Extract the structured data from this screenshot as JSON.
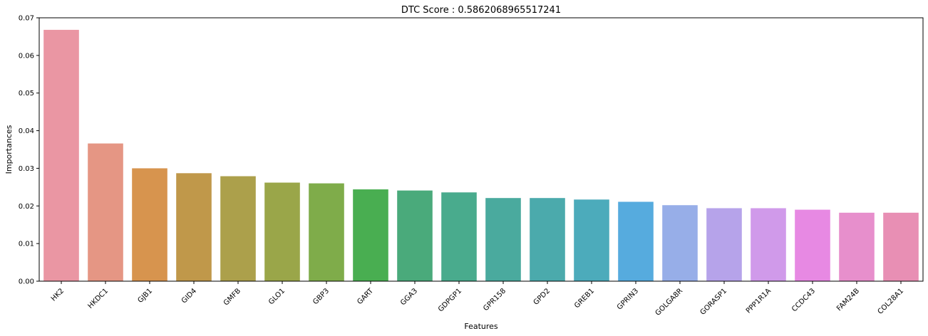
{
  "chart_data": {
    "type": "bar",
    "title": "DTC Score : 0.5862068965517241",
    "xlabel": "Features",
    "ylabel": "Importances",
    "ylim": [
      0,
      0.07
    ],
    "yticks": [
      "0.00",
      "0.01",
      "0.02",
      "0.03",
      "0.04",
      "0.05",
      "0.06",
      "0.07"
    ],
    "grid": false,
    "categories": [
      "HK2",
      "HKDC1",
      "GJB1",
      "GID4",
      "GMFB",
      "GLO1",
      "GBP3",
      "GART",
      "GGA3",
      "GDPGP1",
      "GPR158",
      "GPD2",
      "GREB1",
      "GPRIN3",
      "GOLGA8R",
      "GORASP1",
      "PPP1R1A",
      "CCDC43",
      "FAM24B",
      "COL28A1"
    ],
    "values": [
      0.0668,
      0.0366,
      0.03,
      0.0287,
      0.0279,
      0.0262,
      0.026,
      0.0244,
      0.0241,
      0.0236,
      0.0221,
      0.0221,
      0.0217,
      0.0211,
      0.0202,
      0.0194,
      0.0194,
      0.019,
      0.0182,
      0.0182
    ],
    "colors": [
      "#ea96a3",
      "#e59684",
      "#d7944e",
      "#c0984a",
      "#aca04b",
      "#9aa649",
      "#7fac4a",
      "#49ae51",
      "#4aaa7b",
      "#49ab8d",
      "#4aaa9e",
      "#4baaac",
      "#4cabbb",
      "#56abde",
      "#97aee8",
      "#b6a3ea",
      "#d09aea",
      "#e789e3",
      "#e78fcc",
      "#e88fb4"
    ]
  }
}
